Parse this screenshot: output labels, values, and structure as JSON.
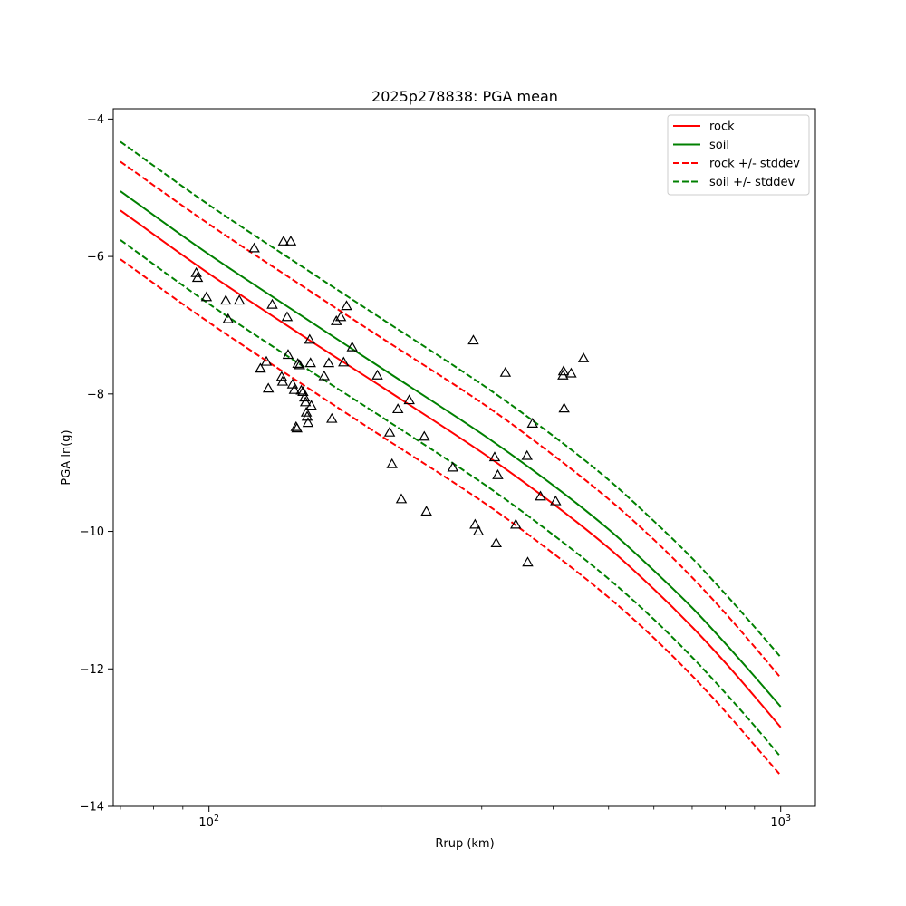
{
  "chart_data": {
    "type": "scatter",
    "title": "2025p278838: PGA mean",
    "xlabel": "Rrup (km)",
    "ylabel": "PGA ln(g)",
    "xscale": "log",
    "xlim": [
      68,
      1150
    ],
    "ylim": [
      -14,
      -3.85
    ],
    "x_ticks": [
      {
        "value": 100,
        "base": "10",
        "exp": "2"
      },
      {
        "value": 1000,
        "base": "10",
        "exp": "3"
      }
    ],
    "y_ticks": [
      {
        "value": -4,
        "label": "−4"
      },
      {
        "value": -6,
        "label": "−6"
      },
      {
        "value": -8,
        "label": "−8"
      },
      {
        "value": -10,
        "label": "−10"
      },
      {
        "value": -12,
        "label": "−12"
      },
      {
        "value": -14,
        "label": "−14"
      }
    ],
    "grid": false,
    "legend_position": "upper-right",
    "legend": [
      {
        "label": "rock",
        "color": "#ff0000",
        "dash": "solid"
      },
      {
        "label": "soil",
        "color": "#008000",
        "dash": "solid"
      },
      {
        "label": "rock +/- stddev",
        "color": "#ff0000",
        "dash": "dashed"
      },
      {
        "label": "soil +/- stddev",
        "color": "#008000",
        "dash": "dashed"
      }
    ],
    "series": [
      {
        "name": "rock",
        "color": "#ff0000",
        "dash": "solid",
        "x": [
          70,
          100,
          150,
          200,
          300,
          400,
          500,
          600,
          700,
          800,
          900,
          1000
        ],
        "y": [
          -5.33,
          -6.25,
          -7.22,
          -7.89,
          -8.85,
          -9.6,
          -10.24,
          -10.84,
          -11.39,
          -11.91,
          -12.4,
          -12.85
        ]
      },
      {
        "name": "soil",
        "color": "#008000",
        "dash": "solid",
        "x": [
          70,
          100,
          150,
          200,
          300,
          400,
          500,
          600,
          700,
          800,
          900,
          1000
        ],
        "y": [
          -5.05,
          -5.97,
          -6.94,
          -7.62,
          -8.58,
          -9.33,
          -9.97,
          -10.57,
          -11.11,
          -11.63,
          -12.11,
          -12.55
        ]
      },
      {
        "name": "rock +/- stddev",
        "color": "#ff0000",
        "dash": "dashed",
        "x": [
          70,
          100,
          150,
          200,
          300,
          400,
          500,
          600,
          700,
          800,
          900,
          1000
        ],
        "y": [
          -4.62,
          -5.53,
          -6.5,
          -7.18,
          -8.13,
          -8.89,
          -9.53,
          -10.12,
          -10.67,
          -11.19,
          -11.68,
          -12.13
        ]
      },
      {
        "name": "rock +/- stddev",
        "color": "#ff0000",
        "dash": "dashed",
        "x": [
          70,
          100,
          150,
          200,
          300,
          400,
          500,
          600,
          700,
          800,
          900,
          1000
        ],
        "y": [
          -6.04,
          -6.96,
          -7.93,
          -8.61,
          -9.56,
          -10.32,
          -10.96,
          -11.55,
          -12.1,
          -12.62,
          -13.11,
          -13.55
        ]
      },
      {
        "name": "soil +/- stddev",
        "color": "#008000",
        "dash": "dashed",
        "x": [
          70,
          100,
          150,
          200,
          300,
          400,
          500,
          600,
          700,
          800,
          900,
          1000
        ],
        "y": [
          -4.33,
          -5.25,
          -6.22,
          -6.9,
          -7.86,
          -8.61,
          -9.25,
          -9.85,
          -10.39,
          -10.91,
          -11.39,
          -11.83
        ]
      },
      {
        "name": "soil +/- stddev",
        "color": "#008000",
        "dash": "dashed",
        "x": [
          70,
          100,
          150,
          200,
          300,
          400,
          500,
          600,
          700,
          800,
          900,
          1000
        ],
        "y": [
          -5.76,
          -6.69,
          -7.66,
          -8.33,
          -9.29,
          -10.05,
          -10.69,
          -11.28,
          -11.83,
          -12.35,
          -12.83,
          -13.28
        ]
      }
    ],
    "observations": [
      {
        "x": 95,
        "y": -6.24
      },
      {
        "x": 95.5,
        "y": -6.31
      },
      {
        "x": 99,
        "y": -6.59
      },
      {
        "x": 107,
        "y": -6.64
      },
      {
        "x": 108,
        "y": -6.91
      },
      {
        "x": 113,
        "y": -6.64
      },
      {
        "x": 120,
        "y": -5.88
      },
      {
        "x": 123,
        "y": -7.63
      },
      {
        "x": 126,
        "y": -7.53
      },
      {
        "x": 127,
        "y": -7.92
      },
      {
        "x": 129,
        "y": -6.7
      },
      {
        "x": 134,
        "y": -7.75
      },
      {
        "x": 134.5,
        "y": -7.82
      },
      {
        "x": 135,
        "y": -5.78
      },
      {
        "x": 137,
        "y": -6.88
      },
      {
        "x": 137.5,
        "y": -7.43
      },
      {
        "x": 139,
        "y": -5.78
      },
      {
        "x": 140,
        "y": -7.86
      },
      {
        "x": 141,
        "y": -7.94
      },
      {
        "x": 142,
        "y": -8.48
      },
      {
        "x": 142.5,
        "y": -8.5
      },
      {
        "x": 143,
        "y": -7.56
      },
      {
        "x": 144,
        "y": -7.58
      },
      {
        "x": 145,
        "y": -7.95
      },
      {
        "x": 146,
        "y": -7.97
      },
      {
        "x": 147,
        "y": -8.05
      },
      {
        "x": 147.5,
        "y": -8.12
      },
      {
        "x": 148,
        "y": -8.27
      },
      {
        "x": 148.5,
        "y": -8.33
      },
      {
        "x": 149,
        "y": -8.42
      },
      {
        "x": 150,
        "y": -7.21
      },
      {
        "x": 150.5,
        "y": -7.55
      },
      {
        "x": 151,
        "y": -8.17
      },
      {
        "x": 159,
        "y": -7.74
      },
      {
        "x": 162,
        "y": -7.55
      },
      {
        "x": 164,
        "y": -8.36
      },
      {
        "x": 167,
        "y": -6.94
      },
      {
        "x": 170,
        "y": -6.88
      },
      {
        "x": 172,
        "y": -7.54
      },
      {
        "x": 174,
        "y": -6.72
      },
      {
        "x": 178,
        "y": -7.32
      },
      {
        "x": 197,
        "y": -7.73
      },
      {
        "x": 207,
        "y": -8.56
      },
      {
        "x": 209,
        "y": -9.02
      },
      {
        "x": 214,
        "y": -8.22
      },
      {
        "x": 217,
        "y": -9.53
      },
      {
        "x": 224,
        "y": -8.09
      },
      {
        "x": 238,
        "y": -8.62
      },
      {
        "x": 240,
        "y": -9.71
      },
      {
        "x": 267,
        "y": -9.07
      },
      {
        "x": 290,
        "y": -7.22
      },
      {
        "x": 292,
        "y": -9.9
      },
      {
        "x": 296,
        "y": -10.0
      },
      {
        "x": 316,
        "y": -8.92
      },
      {
        "x": 318,
        "y": -10.17
      },
      {
        "x": 320,
        "y": -9.18
      },
      {
        "x": 330,
        "y": -7.69
      },
      {
        "x": 344,
        "y": -9.9
      },
      {
        "x": 360,
        "y": -8.9
      },
      {
        "x": 361,
        "y": -10.45
      },
      {
        "x": 368,
        "y": -8.43
      },
      {
        "x": 380,
        "y": -9.49
      },
      {
        "x": 404,
        "y": -9.56
      },
      {
        "x": 416,
        "y": -7.73
      },
      {
        "x": 417,
        "y": -7.67
      },
      {
        "x": 418,
        "y": -8.21
      },
      {
        "x": 430,
        "y": -7.7
      },
      {
        "x": 452,
        "y": -7.48
      }
    ]
  }
}
